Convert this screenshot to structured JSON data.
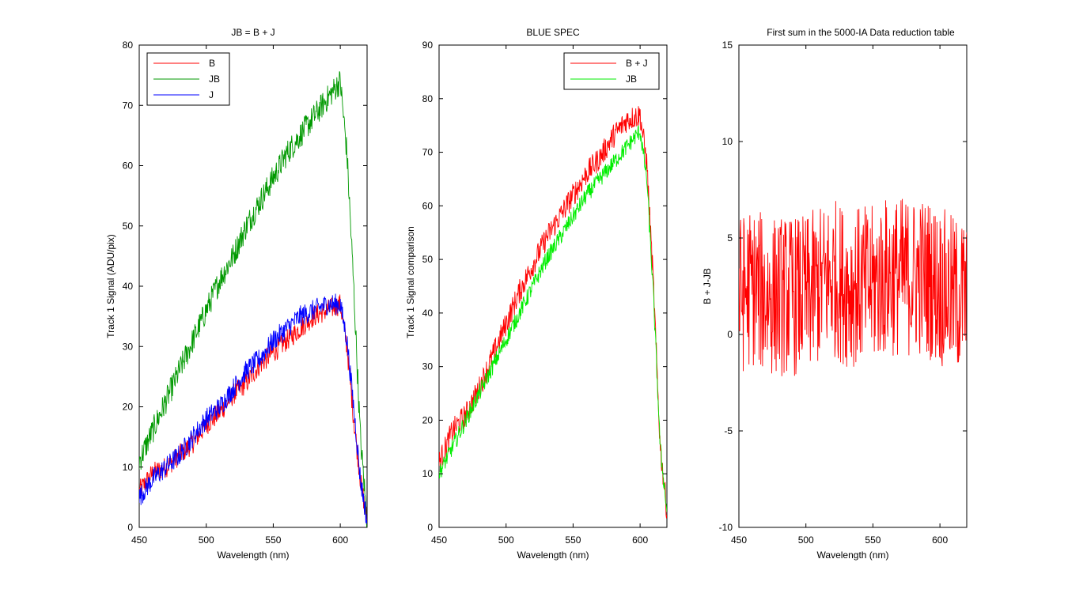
{
  "figure": {
    "background": "#ffffff"
  },
  "chart_data": [
    {
      "type": "line",
      "title": "JB = B + J",
      "xlabel": "Wavelength (nm)",
      "ylabel": "Track 1 Signal (ADU/pix)",
      "xlim": [
        450,
        620
      ],
      "ylim": [
        0,
        80
      ],
      "xticks": [
        450,
        500,
        550,
        600
      ],
      "yticks": [
        0,
        10,
        20,
        30,
        40,
        50,
        60,
        70,
        80
      ],
      "legend_position": "top-left",
      "series": [
        {
          "name": "B",
          "color": "#ff0000",
          "x": [
            450,
            460,
            470,
            480,
            490,
            500,
            510,
            520,
            530,
            540,
            550,
            560,
            570,
            580,
            590,
            600,
            605,
            610,
            615,
            620
          ],
          "y": [
            6,
            9,
            10,
            12,
            14,
            17,
            19,
            22,
            24,
            27,
            29,
            31,
            33,
            35,
            36,
            37,
            30,
            18,
            8,
            1
          ],
          "noise": 1.8
        },
        {
          "name": "JB",
          "color": "#009900",
          "x": [
            450,
            460,
            470,
            480,
            490,
            500,
            510,
            520,
            530,
            540,
            550,
            560,
            570,
            580,
            590,
            600,
            605,
            610,
            615,
            620
          ],
          "y": [
            11,
            16,
            21,
            26,
            31,
            36,
            41,
            45,
            50,
            54,
            58,
            62,
            65,
            68,
            71,
            74,
            62,
            40,
            15,
            1
          ],
          "noise": 2.2
        },
        {
          "name": "J",
          "color": "#0000ff",
          "x": [
            450,
            460,
            470,
            480,
            490,
            500,
            510,
            520,
            530,
            540,
            550,
            560,
            570,
            580,
            590,
            600,
            605,
            610,
            615,
            620
          ],
          "y": [
            5,
            8,
            10,
            12,
            15,
            18,
            20,
            23,
            26,
            28,
            31,
            33,
            35,
            36,
            37,
            37,
            31,
            20,
            8,
            1
          ],
          "noise": 1.8
        }
      ]
    },
    {
      "type": "line",
      "title": "BLUE SPEC",
      "xlabel": "Wavelength (nm)",
      "ylabel": "Track 1 Signal comparison",
      "xlim": [
        450,
        620
      ],
      "ylim": [
        0,
        90
      ],
      "xticks": [
        450,
        500,
        550,
        600
      ],
      "yticks": [
        0,
        10,
        20,
        30,
        40,
        50,
        60,
        70,
        80,
        90
      ],
      "legend_position": "top-right",
      "series": [
        {
          "name": "B + J",
          "color": "#ff0000",
          "x": [
            450,
            460,
            470,
            480,
            490,
            500,
            510,
            520,
            530,
            540,
            550,
            560,
            570,
            580,
            590,
            600,
            605,
            610,
            615,
            620
          ],
          "y": [
            12,
            18,
            21,
            26,
            32,
            38,
            44,
            49,
            54,
            58,
            62,
            66,
            69,
            73,
            76,
            77,
            68,
            45,
            15,
            3
          ],
          "noise": 2.3
        },
        {
          "name": "JB",
          "color": "#00ee00",
          "x": [
            450,
            460,
            470,
            480,
            490,
            500,
            510,
            520,
            530,
            540,
            550,
            560,
            570,
            580,
            590,
            600,
            605,
            610,
            615,
            620
          ],
          "y": [
            10,
            15,
            20,
            25,
            30,
            35,
            40,
            45,
            50,
            54,
            58,
            62,
            65,
            68,
            71,
            74,
            65,
            43,
            15,
            3
          ],
          "noise": 1.6
        }
      ]
    },
    {
      "type": "line",
      "title": "First sum in the 5000-IA Data reduction table",
      "xlabel": "Wavelength (nm)",
      "ylabel": "B + J-JB",
      "xlim": [
        450,
        620
      ],
      "ylim": [
        -10,
        15
      ],
      "xticks": [
        450,
        500,
        550,
        600
      ],
      "yticks": [
        -10,
        -5,
        0,
        5,
        10,
        15
      ],
      "legend_position": "none",
      "series": [
        {
          "color": "#ff0000",
          "x": [
            450,
            460,
            470,
            480,
            490,
            500,
            510,
            520,
            530,
            540,
            550,
            560,
            570,
            580,
            590,
            600,
            610,
            620
          ],
          "y": [
            2,
            2.5,
            2,
            2,
            2,
            2,
            2.5,
            3,
            2.5,
            2.5,
            2.5,
            3,
            3,
            3,
            3,
            2.5,
            2,
            2
          ],
          "noise": 4.2
        }
      ]
    }
  ]
}
